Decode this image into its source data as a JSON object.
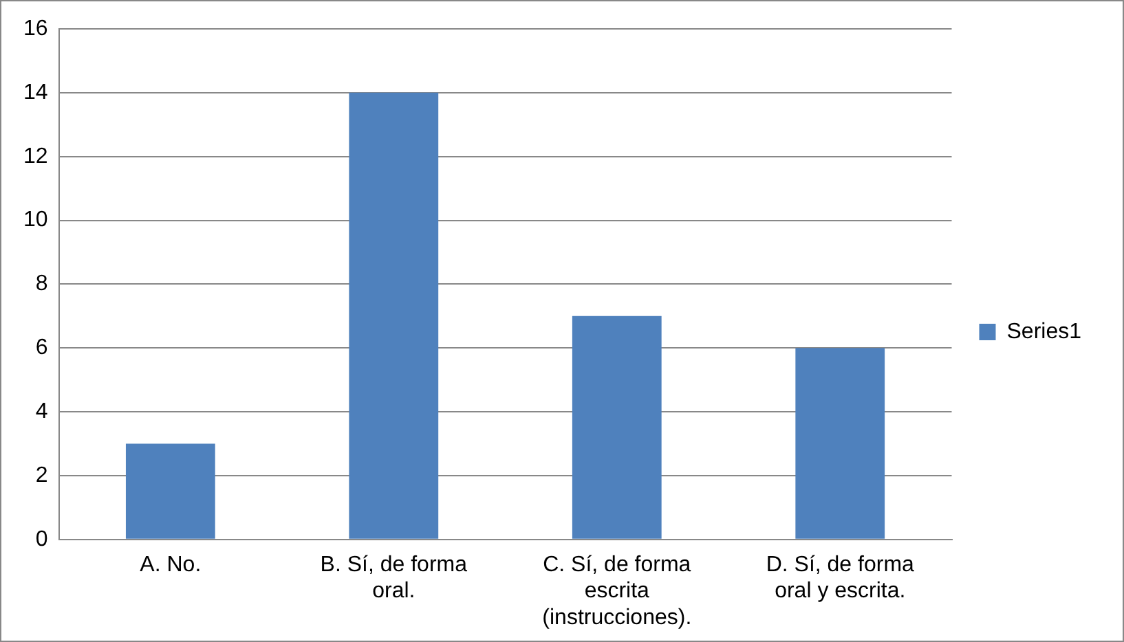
{
  "chart_data": {
    "type": "bar",
    "categories": [
      "A. No.",
      "B. Sí, de forma oral.",
      "C. Sí, de forma escrita (instrucciones).",
      "D. Sí, de forma oral y escrita."
    ],
    "series": [
      {
        "name": "Series1",
        "color": "#4f81bd",
        "values": [
          3,
          14,
          7,
          6
        ]
      }
    ],
    "ylim": [
      0,
      16
    ],
    "yticks": [
      0,
      2,
      4,
      6,
      8,
      10,
      12,
      14,
      16
    ],
    "grid": "y",
    "legend": "right"
  }
}
